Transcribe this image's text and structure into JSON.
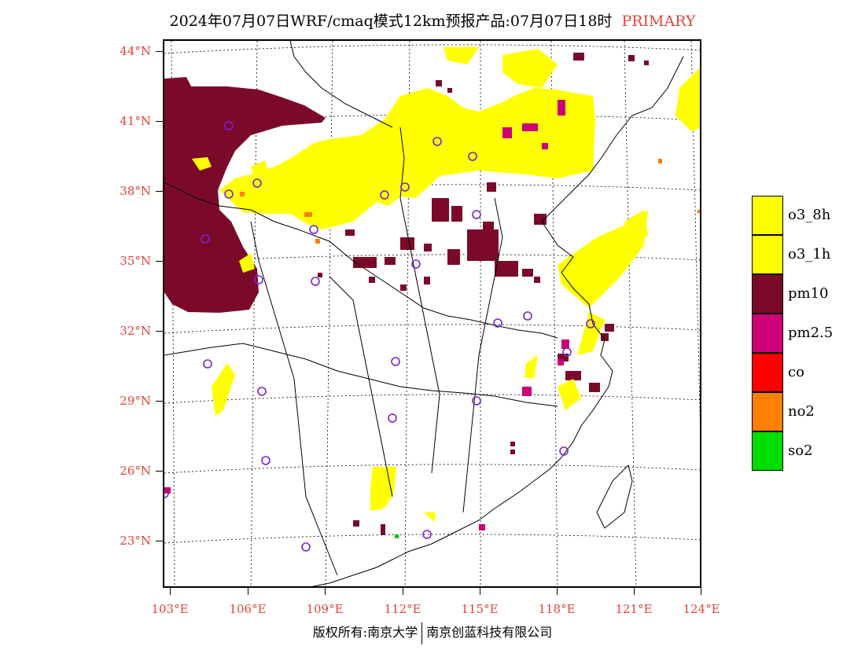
{
  "title": {
    "main": "2024年07月07日WRF/cmaq模式12km预报产品:07月07日18时",
    "tag": "PRIMARY"
  },
  "map": {
    "lat_labels": [
      "44°N",
      "41°N",
      "38°N",
      "35°N",
      "32°N",
      "29°N",
      "26°N",
      "23°N"
    ],
    "lon_labels": [
      "103°E",
      "106°E",
      "109°E",
      "112°E",
      "115°E",
      "118°E",
      "121°E",
      "124°E"
    ]
  },
  "legend": [
    {
      "label": "o3_8h",
      "color": "#ffff00"
    },
    {
      "label": "o3_1h",
      "color": "#ffff00"
    },
    {
      "label": "pm10",
      "color": "#7b0a2a"
    },
    {
      "label": "pm2.5",
      "color": "#cc0077"
    },
    {
      "label": "co",
      "color": "#ff0000"
    },
    {
      "label": "no2",
      "color": "#ff7f00"
    },
    {
      "label": "so2",
      "color": "#00dd00"
    }
  ],
  "footer": {
    "left": "版权所有:南京大学",
    "right": "南京创蓝科技有限公司"
  }
}
